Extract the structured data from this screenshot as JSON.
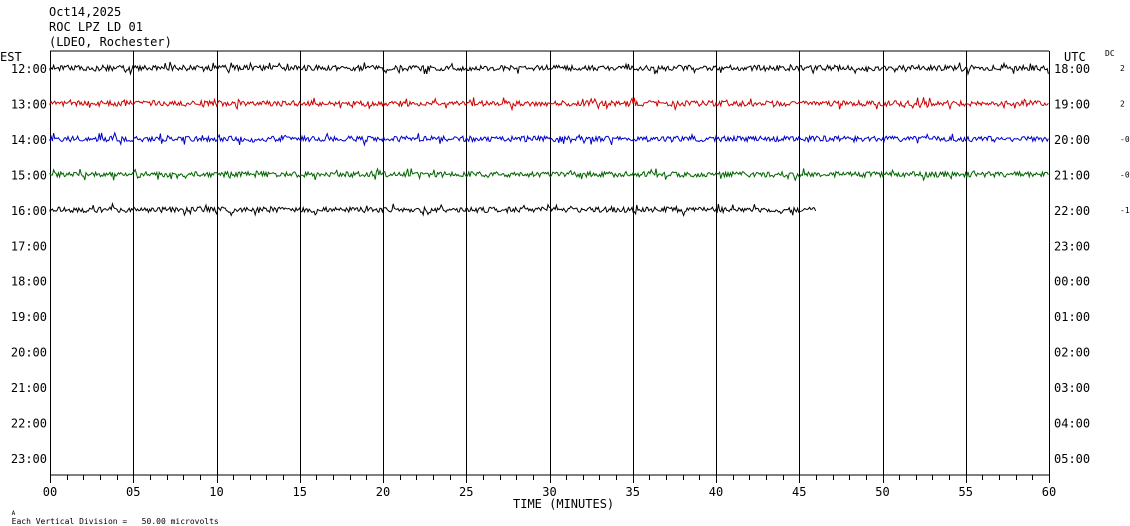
{
  "header": {
    "date": "Oct14,2025",
    "station": "ROC LPZ LD 01",
    "network": "(LDEO, Rochester)"
  },
  "labels": {
    "left_tz": "EST",
    "right_tz": "UTC",
    "dc": "DC",
    "xaxis_title": "TIME (MINUTES)",
    "footer": "Each Vertical Division =   50.00 microvolts",
    "corner_mark": "A"
  },
  "chart_data": {
    "type": "line",
    "xlabel": "TIME (MINUTES)",
    "xlim": [
      0,
      60
    ],
    "x_ticks": [
      "00",
      "05",
      "10",
      "15",
      "20",
      "25",
      "30",
      "35",
      "40",
      "45",
      "50",
      "55",
      "60"
    ],
    "rows_est": [
      "12:00",
      "13:00",
      "14:00",
      "15:00",
      "16:00",
      "17:00",
      "18:00",
      "19:00",
      "20:00",
      "21:00",
      "22:00",
      "23:00"
    ],
    "rows_utc": [
      "18:00",
      "19:00",
      "20:00",
      "21:00",
      "22:00",
      "23:00",
      "00:00",
      "01:00",
      "02:00",
      "03:00",
      "04:00",
      "05:00"
    ],
    "series": [
      {
        "row": "12:00",
        "color": "#000000",
        "end_minute": 60,
        "dc": "2"
      },
      {
        "row": "13:00",
        "color": "#cc0000",
        "end_minute": 60,
        "dc": "2"
      },
      {
        "row": "14:00",
        "color": "#0000cc",
        "end_minute": 60,
        "dc": "-0"
      },
      {
        "row": "15:00",
        "color": "#006400",
        "end_minute": 60,
        "dc": "-0"
      },
      {
        "row": "16:00",
        "color": "#000000",
        "end_minute": 46,
        "dc": "-1"
      }
    ]
  }
}
